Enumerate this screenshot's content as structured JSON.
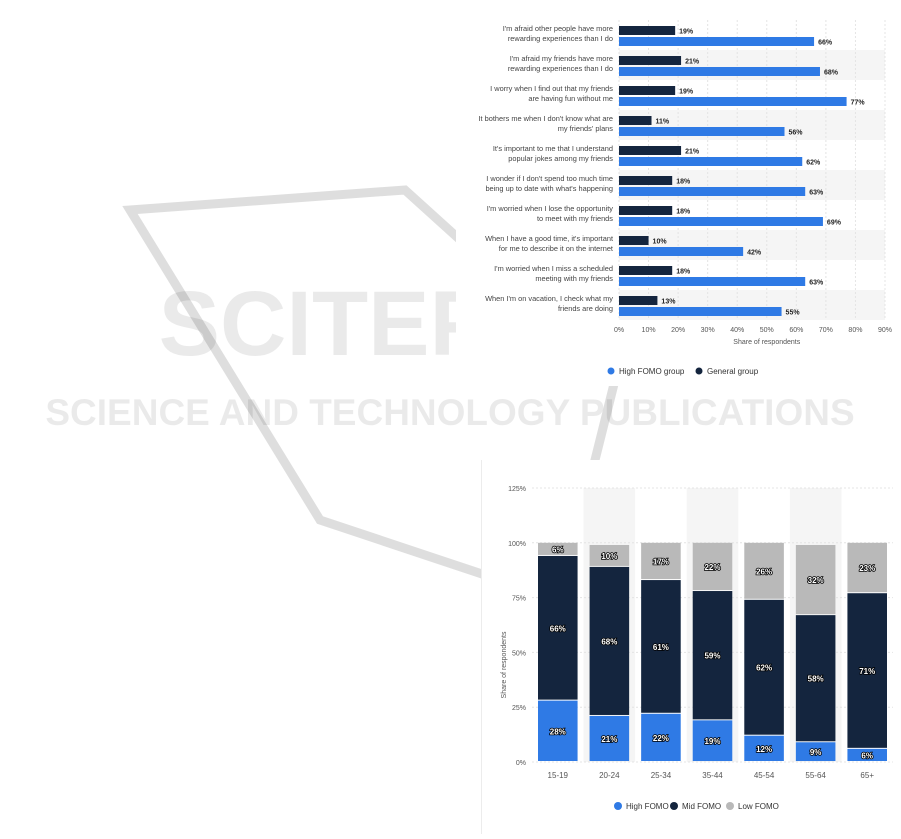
{
  "watermark": {
    "main_text": "SCITEPRESS",
    "sub_text": "SCIENCE AND TECHNOLOGY PUBLICATIONS"
  },
  "colors": {
    "high": "#2f7ae5",
    "general": "#14253e",
    "mid": "#14253e",
    "low": "#b9b9b9",
    "band": "#f5f5f5",
    "grid": "#e4e4e4",
    "axis_text": "#555555"
  },
  "chart_data": [
    {
      "type": "bar",
      "orientation": "horizontal",
      "categories": [
        [
          "I'm afraid other people have more",
          "rewarding experiences than I do"
        ],
        [
          "I'm afraid my friends have more",
          "rewarding experiences than I do"
        ],
        [
          "I worry when I find out that my friends",
          "are having fun without me"
        ],
        [
          "It bothers me when I don't know what are",
          "my friends' plans"
        ],
        [
          "It's important to me that I understand",
          "popular jokes among my friends"
        ],
        [
          "I wonder if I don't spend too much time",
          "being up to date with what's happening"
        ],
        [
          "I'm worried when I lose the opportunity",
          "to meet with my friends"
        ],
        [
          "When I have a good time, it's important",
          "for me to describe it on the internet"
        ],
        [
          "I'm worried when I miss a scheduled",
          "meeting with my friends"
        ],
        [
          "When I'm on vacation, I check what my",
          "friends are doing"
        ]
      ],
      "series": [
        {
          "name": "General group",
          "values": [
            19,
            21,
            19,
            11,
            21,
            18,
            18,
            10,
            18,
            13
          ],
          "color": "#14253e"
        },
        {
          "name": "High FOMO group",
          "values": [
            66,
            68,
            77,
            56,
            62,
            63,
            69,
            42,
            63,
            55
          ],
          "color": "#2f7ae5"
        }
      ],
      "xlim": [
        0,
        90
      ],
      "xticks": [
        "0%",
        "10%",
        "20%",
        "30%",
        "40%",
        "50%",
        "60%",
        "70%",
        "80%",
        "90%"
      ],
      "xlabel": "Share of respondents",
      "legend": [
        "High FOMO group",
        "General group"
      ],
      "legend_position": "bottom-left",
      "grid": true
    },
    {
      "type": "bar",
      "stacked": true,
      "categories": [
        "15-19",
        "20-24",
        "25-34",
        "35-44",
        "45-54",
        "55-64",
        "65+"
      ],
      "series": [
        {
          "name": "High FOMO",
          "values": [
            28,
            21,
            22,
            19,
            12,
            9,
            6
          ],
          "color": "#2f7ae5"
        },
        {
          "name": "Mid FOMO",
          "values": [
            66,
            68,
            61,
            59,
            62,
            58,
            71
          ],
          "color": "#14253e"
        },
        {
          "name": "Low FOMO",
          "values": [
            6,
            10,
            17,
            22,
            26,
            32,
            23
          ],
          "color": "#b9b9b9"
        }
      ],
      "ylim": [
        0,
        125
      ],
      "yticks": [
        "0%",
        "25%",
        "50%",
        "75%",
        "100%",
        "125%"
      ],
      "ylabel": "Share of respondents",
      "legend": [
        "High FOMO",
        "Mid FOMO",
        "Low FOMO"
      ],
      "legend_position": "bottom",
      "grid": true
    }
  ]
}
